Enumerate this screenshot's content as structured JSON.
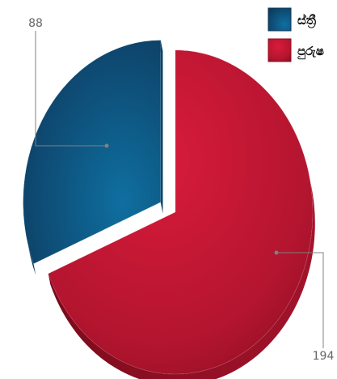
{
  "chart_data": {
    "type": "pie",
    "style": "3d-exploded",
    "slices": [
      {
        "label": "ස්ත්‍රී",
        "value": 88,
        "color": "#1b5a86"
      },
      {
        "label": "පුරුෂ",
        "value": 194,
        "color": "#c51a34"
      }
    ],
    "legend": {
      "position": "top-right",
      "items": [
        {
          "label": "ස්ත්‍රී",
          "color": "#1b5a86"
        },
        {
          "label": "පුරුෂ",
          "color": "#c51a34"
        }
      ]
    },
    "data_labels": [
      "88",
      "194"
    ]
  }
}
